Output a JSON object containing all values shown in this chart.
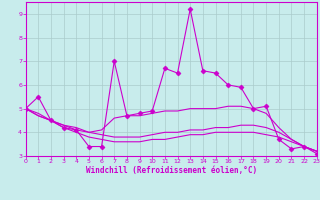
{
  "xlabel": "Windchill (Refroidissement éolien,°C)",
  "bg_color": "#c8ecec",
  "line_color": "#cc00cc",
  "grid_color": "#aacccc",
  "xlim": [
    0,
    23
  ],
  "ylim": [
    3,
    9.5
  ],
  "yticks": [
    3,
    4,
    5,
    6,
    7,
    8,
    9
  ],
  "xticks": [
    0,
    1,
    2,
    3,
    4,
    5,
    6,
    7,
    8,
    9,
    10,
    11,
    12,
    13,
    14,
    15,
    16,
    17,
    18,
    19,
    20,
    21,
    22,
    23
  ],
  "lines": [
    {
      "x": [
        0,
        1,
        2,
        3,
        4,
        5,
        6,
        7,
        8,
        9,
        10,
        11,
        12,
        13,
        14,
        15,
        16,
        17,
        18,
        19,
        20,
        21,
        22,
        23
      ],
      "y": [
        5.0,
        5.5,
        4.5,
        4.2,
        4.1,
        3.4,
        3.4,
        7.0,
        4.7,
        4.8,
        4.9,
        6.7,
        6.5,
        9.2,
        6.6,
        6.5,
        6.0,
        5.9,
        5.0,
        5.1,
        3.7,
        3.3,
        3.4,
        3.1
      ],
      "marker": true
    },
    {
      "x": [
        0,
        1,
        2,
        3,
        4,
        5,
        6,
        7,
        8,
        9,
        10,
        11,
        12,
        13,
        14,
        15,
        16,
        17,
        18,
        19,
        20,
        21,
        22,
        23
      ],
      "y": [
        5.0,
        4.8,
        4.5,
        4.3,
        4.2,
        4.0,
        4.1,
        4.6,
        4.7,
        4.7,
        4.8,
        4.9,
        4.9,
        5.0,
        5.0,
        5.0,
        5.1,
        5.1,
        5.0,
        4.8,
        4.2,
        3.7,
        3.4,
        3.2
      ],
      "marker": false
    },
    {
      "x": [
        0,
        1,
        2,
        3,
        4,
        5,
        6,
        7,
        8,
        9,
        10,
        11,
        12,
        13,
        14,
        15,
        16,
        17,
        18,
        19,
        20,
        21,
        22,
        23
      ],
      "y": [
        5.0,
        4.7,
        4.5,
        4.3,
        4.1,
        4.0,
        3.9,
        3.8,
        3.8,
        3.8,
        3.9,
        4.0,
        4.0,
        4.1,
        4.1,
        4.2,
        4.2,
        4.3,
        4.3,
        4.2,
        4.0,
        3.7,
        3.4,
        3.2
      ],
      "marker": false
    },
    {
      "x": [
        0,
        1,
        2,
        3,
        4,
        5,
        6,
        7,
        8,
        9,
        10,
        11,
        12,
        13,
        14,
        15,
        16,
        17,
        18,
        19,
        20,
        21,
        22,
        23
      ],
      "y": [
        5.0,
        4.7,
        4.5,
        4.2,
        4.0,
        3.8,
        3.7,
        3.6,
        3.6,
        3.6,
        3.7,
        3.7,
        3.8,
        3.9,
        3.9,
        4.0,
        4.0,
        4.0,
        4.0,
        3.9,
        3.8,
        3.6,
        3.4,
        3.2
      ],
      "marker": false
    }
  ]
}
